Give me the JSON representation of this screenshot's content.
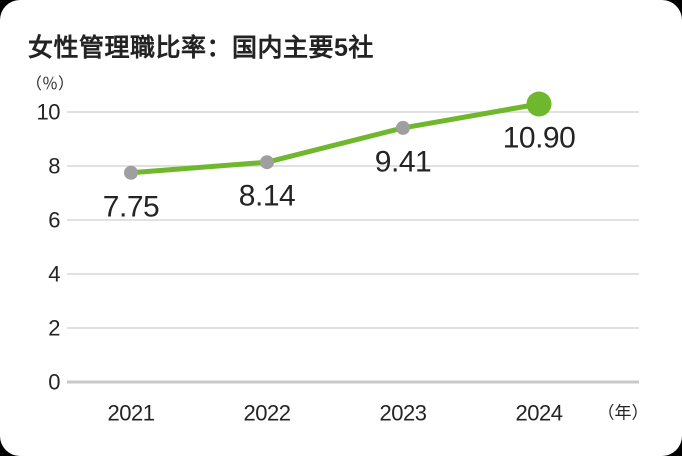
{
  "chart_data": {
    "type": "line",
    "title": "女性管理職比率：国内主要5社",
    "ylabel": "（％）",
    "xlabel": "（年）",
    "categories": [
      "2021",
      "2022",
      "2023",
      "2024"
    ],
    "series": [
      {
        "name": "女性管理職比率",
        "values": [
          7.75,
          8.14,
          9.41,
          10.9
        ]
      }
    ],
    "point_labels": [
      "7.75",
      "8.14",
      "9.41",
      "10.90"
    ],
    "ylim": [
      0,
      10
    ],
    "yticks": [
      0,
      2,
      4,
      6,
      8,
      10
    ],
    "grid": true,
    "legend": false,
    "last_point_emphasis": true,
    "colors": {
      "line": "#6fb82e",
      "point": "#9f9f9f",
      "last_point": "#6fb82e",
      "label": "#1e1e1e",
      "grid": "#e1e1e1",
      "zero_line": "#c9c9c9",
      "card_background": "#ffffff",
      "page_background": "#000000"
    }
  }
}
